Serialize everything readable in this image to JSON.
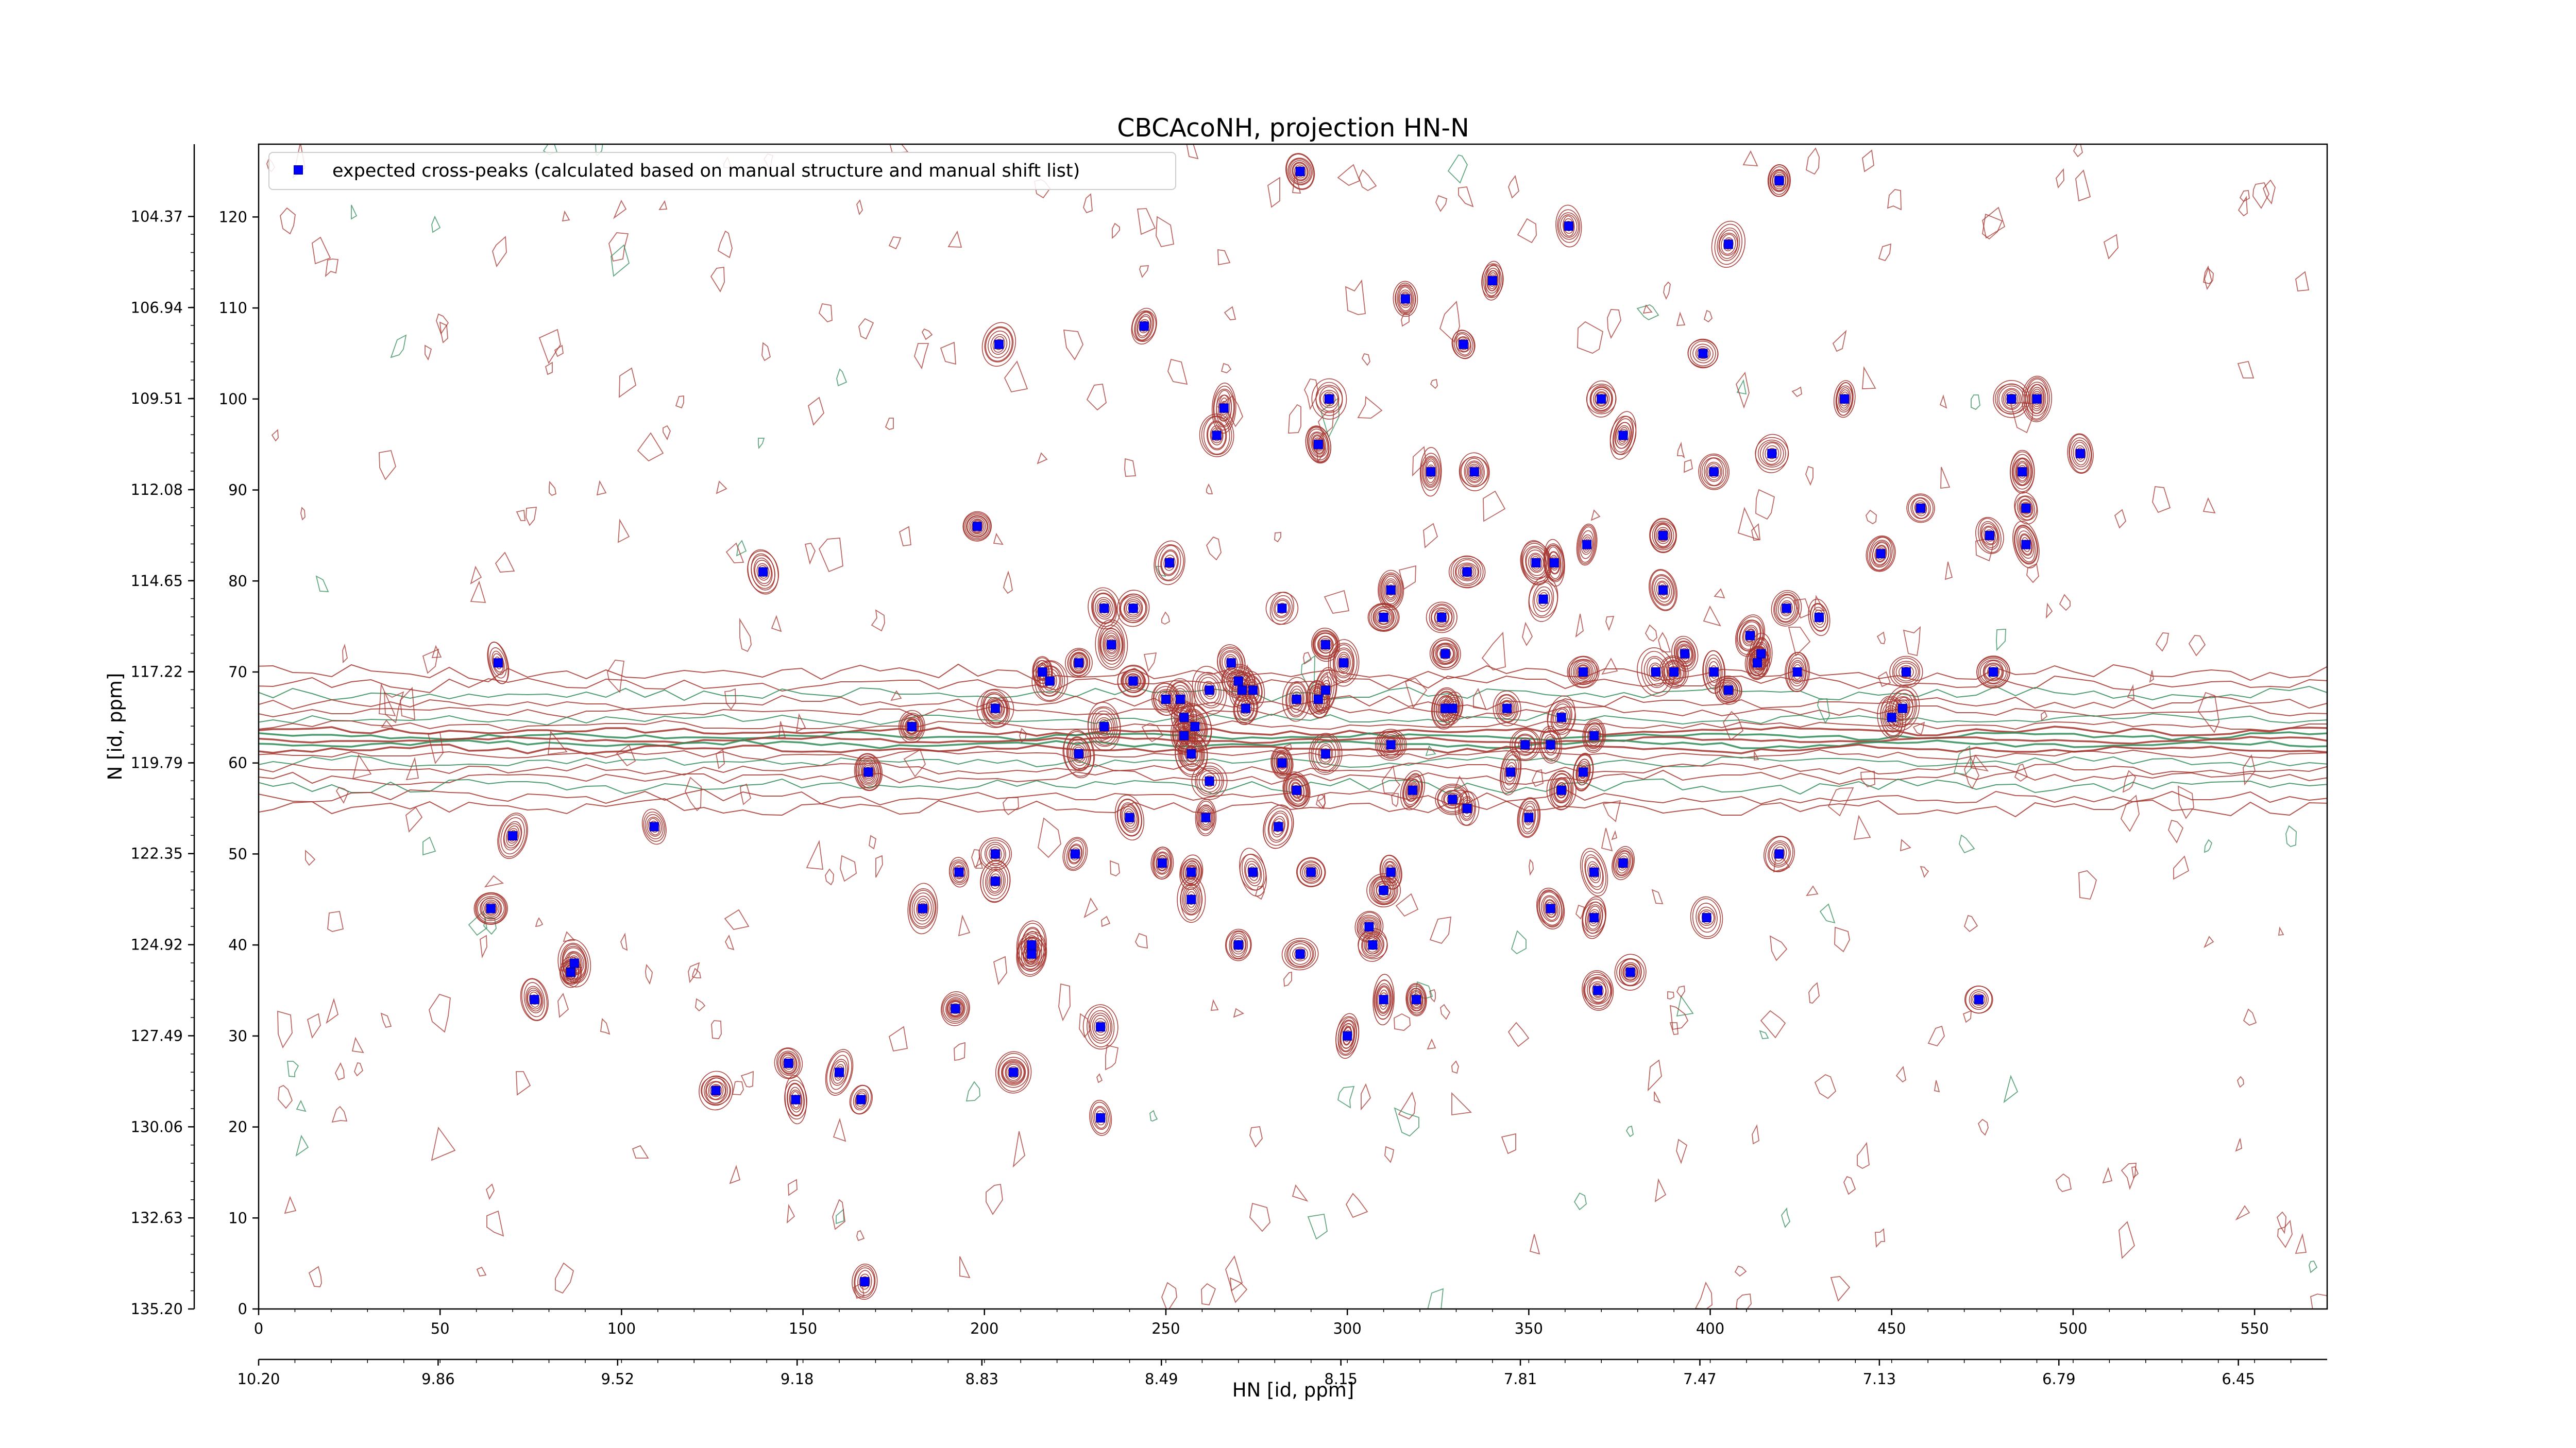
{
  "chart_data": {
    "type": "scatter",
    "title": "CBCAcoNH, projection HN-N",
    "xlabel": "HN [id, ppm]",
    "ylabel": "N [id, ppm]",
    "x_index_range": [
      0,
      570
    ],
    "y_index_range": [
      0,
      128
    ],
    "hn_ppm_at_index0": 10.2,
    "hn_ppm_per_index": -0.006874,
    "n_ppm_at_index0": 135.2,
    "n_ppm_per_index": -0.2568,
    "x_index_ticks": [
      "0",
      "50",
      "100",
      "150",
      "200",
      "250",
      "300",
      "350",
      "400",
      "450",
      "500",
      "550"
    ],
    "x_ppm_ticks": [
      "10.20",
      "9.86",
      "9.52",
      "9.18",
      "8.83",
      "8.49",
      "8.15",
      "7.81",
      "7.47",
      "7.13",
      "6.79",
      "6.45"
    ],
    "y_index_ticks": [
      "0",
      "10",
      "20",
      "30",
      "40",
      "50",
      "60",
      "70",
      "80",
      "90",
      "100",
      "110",
      "120"
    ],
    "y_ppm_ticks": [
      "135.20",
      "132.63",
      "130.06",
      "127.49",
      "124.92",
      "122.35",
      "119.79",
      "117.22",
      "114.65",
      "112.08",
      "109.51",
      "106.94",
      "104.37"
    ],
    "grid": false,
    "legend_position": "upper-left",
    "colors": {
      "marker": "#0000ff",
      "contour_positive": "#a5342d",
      "contour_negative": "#2e8b57"
    },
    "series": [
      {
        "name": "expected cross-peaks (calculated based on manual structure and manual shift list)",
        "points": [
          [
            287,
            125
          ],
          [
            419,
            124
          ],
          [
            361,
            119
          ],
          [
            405,
            117
          ],
          [
            340,
            113
          ],
          [
            316,
            111
          ],
          [
            244,
            108
          ],
          [
            332,
            106
          ],
          [
            398,
            105
          ],
          [
            204,
            106
          ],
          [
            266,
            99
          ],
          [
            295,
            100
          ],
          [
            370,
            100
          ],
          [
            437,
            100
          ],
          [
            483,
            100
          ],
          [
            490,
            100
          ],
          [
            264,
            96
          ],
          [
            292,
            95
          ],
          [
            376,
            96
          ],
          [
            417,
            94
          ],
          [
            502,
            94
          ],
          [
            323,
            92
          ],
          [
            335,
            92
          ],
          [
            401,
            92
          ],
          [
            486,
            92
          ],
          [
            458,
            88
          ],
          [
            487,
            88
          ],
          [
            198,
            86
          ],
          [
            387,
            85
          ],
          [
            477,
            85
          ],
          [
            366,
            84
          ],
          [
            487,
            84
          ],
          [
            447,
            83
          ],
          [
            251,
            82
          ],
          [
            139,
            81
          ],
          [
            333,
            81
          ],
          [
            352,
            82
          ],
          [
            357,
            82
          ],
          [
            312,
            79
          ],
          [
            387,
            79
          ],
          [
            233,
            77
          ],
          [
            241,
            77
          ],
          [
            282,
            77
          ],
          [
            310,
            76
          ],
          [
            326,
            76
          ],
          [
            421,
            77
          ],
          [
            430,
            76
          ],
          [
            411,
            74
          ],
          [
            235,
            73
          ],
          [
            354,
            78
          ],
          [
            66,
            71
          ],
          [
            216,
            70
          ],
          [
            226,
            71
          ],
          [
            268,
            71
          ],
          [
            294,
            73
          ],
          [
            299,
            71
          ],
          [
            327,
            72
          ],
          [
            393,
            72
          ],
          [
            413,
            71
          ],
          [
            365,
            70
          ],
          [
            385,
            70
          ],
          [
            390,
            70
          ],
          [
            401,
            70
          ],
          [
            478,
            70
          ],
          [
            270,
            69
          ],
          [
            218,
            69
          ],
          [
            241,
            69
          ],
          [
            271,
            68
          ],
          [
            262,
            68
          ],
          [
            454,
            70
          ],
          [
            294,
            68
          ],
          [
            250,
            67
          ],
          [
            254,
            67
          ],
          [
            274,
            68
          ],
          [
            286,
            67
          ],
          [
            292,
            67
          ],
          [
            405,
            68
          ],
          [
            424,
            70
          ],
          [
            414,
            72
          ],
          [
            203,
            66
          ],
          [
            180,
            64
          ],
          [
            233,
            64
          ],
          [
            255,
            65
          ],
          [
            258,
            64
          ],
          [
            272,
            66
          ],
          [
            327,
            66
          ],
          [
            329,
            66
          ],
          [
            344,
            66
          ],
          [
            359,
            65
          ],
          [
            450,
            65
          ],
          [
            453,
            66
          ],
          [
            226,
            61
          ],
          [
            255,
            63
          ],
          [
            257,
            61
          ],
          [
            282,
            60
          ],
          [
            294,
            61
          ],
          [
            312,
            62
          ],
          [
            349,
            62
          ],
          [
            356,
            62
          ],
          [
            368,
            63
          ],
          [
            345,
            59
          ],
          [
            365,
            59
          ],
          [
            168,
            59
          ],
          [
            262,
            58
          ],
          [
            286,
            57
          ],
          [
            318,
            57
          ],
          [
            329,
            56
          ],
          [
            333,
            55
          ],
          [
            350,
            54
          ],
          [
            359,
            57
          ],
          [
            261,
            54
          ],
          [
            281,
            53
          ],
          [
            240,
            54
          ],
          [
            109,
            53
          ],
          [
            70,
            52
          ],
          [
            225,
            50
          ],
          [
            203,
            50
          ],
          [
            193,
            48
          ],
          [
            274,
            48
          ],
          [
            249,
            49
          ],
          [
            257,
            48
          ],
          [
            290,
            48
          ],
          [
            312,
            48
          ],
          [
            368,
            48
          ],
          [
            376,
            49
          ],
          [
            419,
            50
          ],
          [
            203,
            47
          ],
          [
            257,
            45
          ],
          [
            310,
            46
          ],
          [
            356,
            44
          ],
          [
            183,
            44
          ],
          [
            64,
            44
          ],
          [
            368,
            43
          ],
          [
            399,
            43
          ],
          [
            87,
            38
          ],
          [
            86,
            37
          ],
          [
            213,
            39
          ],
          [
            213,
            40
          ],
          [
            270,
            40
          ],
          [
            287,
            39
          ],
          [
            306,
            42
          ],
          [
            307,
            40
          ],
          [
            378,
            37
          ],
          [
            310,
            34
          ],
          [
            319,
            34
          ],
          [
            76,
            34
          ],
          [
            192,
            33
          ],
          [
            232,
            31
          ],
          [
            300,
            30
          ],
          [
            474,
            34
          ],
          [
            208,
            26
          ],
          [
            146,
            27
          ],
          [
            160,
            26
          ],
          [
            126,
            24
          ],
          [
            148,
            23
          ],
          [
            166,
            23
          ],
          [
            232,
            21
          ],
          [
            167,
            3
          ],
          [
            369,
            35
          ]
        ]
      }
    ]
  }
}
